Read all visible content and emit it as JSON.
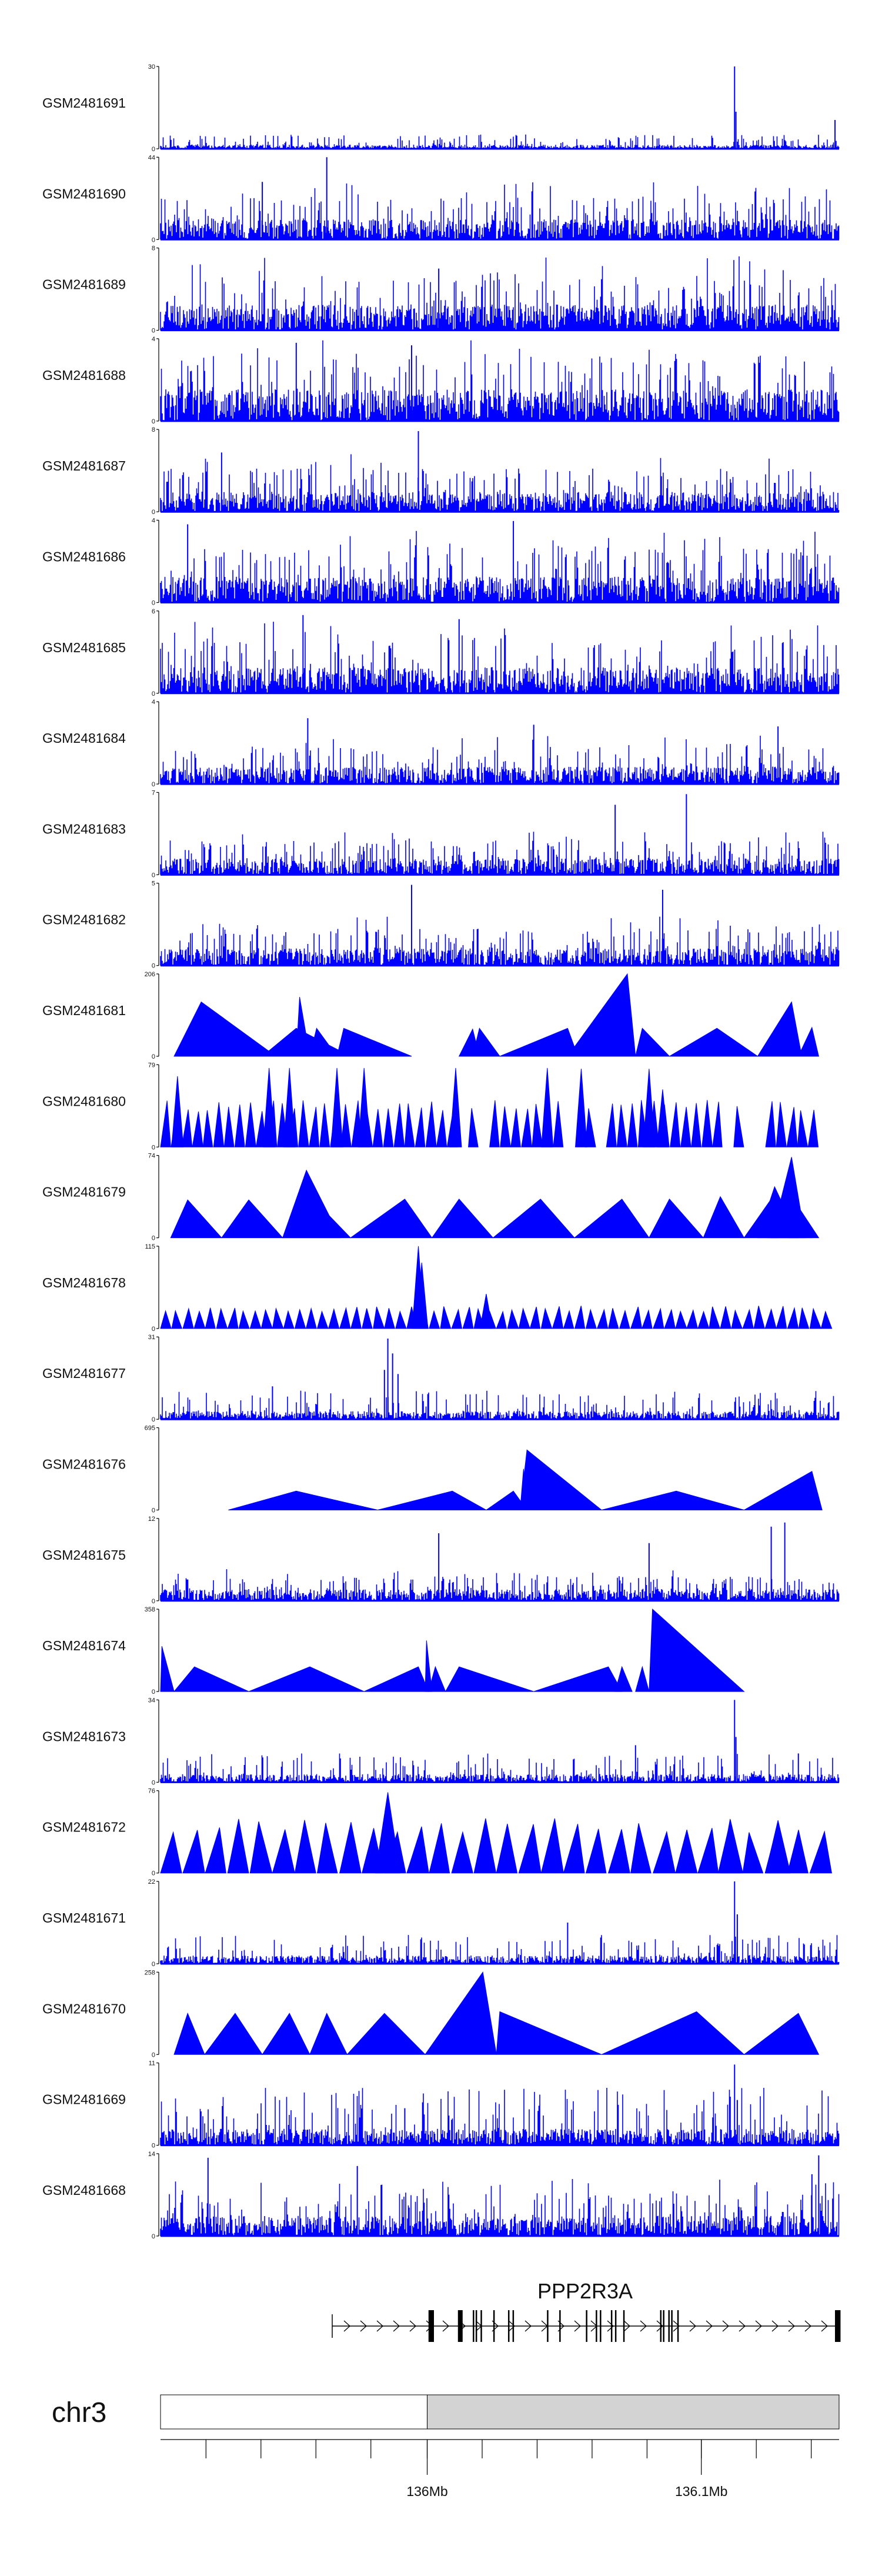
{
  "chart_data": {
    "type": "area",
    "colors": {
      "signal": "#0000ff",
      "axis": "#000000",
      "ideogram_fill": "#d3d3d3",
      "gene": "#000000"
    },
    "tracks": [
      {
        "label": "GSM2481691",
        "ymax": "30",
        "ymin": "0",
        "style": "noise",
        "base": 0.05,
        "spikes": [
          [
            0.846,
            1.0
          ],
          [
            0.848,
            0.45
          ],
          [
            0.994,
            0.35
          ]
        ],
        "seed": 1
      },
      {
        "label": "GSM2481690",
        "ymax": "44",
        "ymin": "0",
        "style": "dense",
        "base": 0.35,
        "spikes": [
          [
            0.245,
            1.0
          ],
          [
            0.15,
            0.7
          ]
        ],
        "seed": 2
      },
      {
        "label": "GSM2481689",
        "ymax": "8",
        "ymin": "0",
        "style": "dense",
        "base": 0.45,
        "spikes": [
          [
            0.41,
            0.75
          ],
          [
            0.65,
            0.62
          ]
        ],
        "seed": 3
      },
      {
        "label": "GSM2481688",
        "ymax": "4",
        "ymin": "0",
        "style": "dense",
        "base": 0.55,
        "spikes": [
          [
            0.2,
            0.95
          ],
          [
            0.37,
            0.92
          ]
        ],
        "seed": 4
      },
      {
        "label": "GSM2481687",
        "ymax": "8",
        "ymin": "0",
        "style": "dense",
        "base": 0.35,
        "spikes": [
          [
            0.38,
            0.98
          ],
          [
            0.09,
            0.72
          ]
        ],
        "seed": 5
      },
      {
        "label": "GSM2481686",
        "ymax": "4",
        "ymin": "0",
        "style": "dense",
        "base": 0.45,
        "spikes": [
          [
            0.52,
            0.99
          ],
          [
            0.04,
            0.95
          ]
        ],
        "seed": 6
      },
      {
        "label": "GSM2481685",
        "ymax": "6",
        "ymin": "0",
        "style": "dense",
        "base": 0.45,
        "spikes": [
          [
            0.21,
            0.95
          ],
          [
            0.44,
            0.9
          ]
        ],
        "seed": 7
      },
      {
        "label": "GSM2481684",
        "ymax": "4",
        "ymin": "0",
        "style": "dense",
        "base": 0.3,
        "spikes": [
          [
            0.217,
            0.8
          ],
          [
            0.55,
            0.72
          ],
          [
            0.91,
            0.7
          ]
        ],
        "seed": 8
      },
      {
        "label": "GSM2481683",
        "ymax": "7",
        "ymin": "0",
        "style": "dense",
        "base": 0.28,
        "spikes": [
          [
            0.775,
            0.98
          ],
          [
            0.67,
            0.85
          ]
        ],
        "seed": 9
      },
      {
        "label": "GSM2481682",
        "ymax": "5",
        "ymin": "0",
        "style": "dense",
        "base": 0.3,
        "spikes": [
          [
            0.37,
            0.98
          ],
          [
            0.74,
            0.92
          ]
        ],
        "seed": 10
      },
      {
        "label": "GSM2481681",
        "ymax": "206",
        "ymin": "0",
        "style": "peaks",
        "peaks": [
          [
            0.02,
            0.06,
            0.17,
            0.66
          ],
          [
            0.06,
            0.07,
            0.15,
            0.33
          ],
          [
            0.15,
            0.2,
            0.28,
            0.34
          ],
          [
            0.2,
            0.205,
            0.22,
            0.72
          ],
          [
            0.22,
            0.23,
            0.26,
            0.34
          ],
          [
            0.26,
            0.27,
            0.37,
            0.34
          ],
          [
            0.44,
            0.46,
            0.47,
            0.33
          ],
          [
            0.46,
            0.47,
            0.5,
            0.34
          ],
          [
            0.5,
            0.6,
            0.615,
            0.34
          ],
          [
            0.88,
            0.93,
            0.945,
            0.66
          ],
          [
            0.615,
            0.655,
            0.7,
            0.34
          ],
          [
            0.7,
            0.71,
            0.75,
            0.34
          ],
          [
            0.75,
            0.82,
            0.88,
            0.34
          ],
          [
            0.9,
            0.92,
            0.94,
            0.34
          ],
          [
            0.6,
            0.688,
            0.7,
            1.0
          ],
          [
            0.94,
            0.96,
            0.97,
            0.35
          ]
        ]
      },
      {
        "label": "GSM2481680",
        "ymax": "79",
        "ymin": "0",
        "style": "sawtooth",
        "base_h": 0.5,
        "teeth": 62,
        "tall": [
          [
            0.16,
            0.96
          ],
          [
            0.19,
            0.96
          ],
          [
            0.26,
            0.96
          ],
          [
            0.3,
            0.96
          ],
          [
            0.435,
            0.96
          ],
          [
            0.57,
            0.96
          ],
          [
            0.62,
            0.95
          ],
          [
            0.72,
            0.95
          ],
          [
            0.025,
            0.86
          ],
          [
            0.74,
            0.7
          ]
        ],
        "gaps": [
          [
            0.55,
            0.65
          ],
          [
            0.43,
            0.48
          ],
          [
            0.66,
            0.68
          ],
          [
            0.79,
            0.9
          ]
        ],
        "range": [
          0.0,
          0.97
        ],
        "seed": 11
      },
      {
        "label": "GSM2481679",
        "ymax": "74",
        "ymin": "0",
        "style": "peaks",
        "peaks": [
          [
            0.015,
            0.04,
            0.09,
            0.46
          ],
          [
            0.09,
            0.13,
            0.18,
            0.46
          ],
          [
            0.18,
            0.215,
            0.265,
            0.82
          ],
          [
            0.18,
            0.225,
            0.28,
            0.47
          ],
          [
            0.28,
            0.36,
            0.4,
            0.47
          ],
          [
            0.4,
            0.44,
            0.49,
            0.47
          ],
          [
            0.49,
            0.56,
            0.61,
            0.47
          ],
          [
            0.61,
            0.68,
            0.72,
            0.47
          ],
          [
            0.72,
            0.75,
            0.8,
            0.47
          ],
          [
            0.8,
            0.825,
            0.86,
            0.5
          ],
          [
            0.86,
            0.9,
            0.96,
            0.47
          ],
          [
            0.9,
            0.93,
            0.95,
            0.98
          ],
          [
            0.88,
            0.905,
            0.94,
            0.62
          ],
          [
            0.895,
            0.905,
            0.91,
            0.6
          ],
          [
            0.925,
            0.93,
            0.97,
            0.5
          ]
        ]
      },
      {
        "label": "GSM2481678",
        "ymax": "115",
        "ymin": "0",
        "style": "sawtooth",
        "base_h": 0.24,
        "teeth": 60,
        "tall": [
          [
            0.38,
            1.0
          ],
          [
            0.385,
            0.8
          ],
          [
            0.48,
            0.42
          ]
        ],
        "gaps": [],
        "range": [
          0.0,
          0.99
        ],
        "seed": 12
      },
      {
        "label": "GSM2481677",
        "ymax": "31",
        "ymin": "0",
        "style": "noise",
        "base": 0.1,
        "spikes": [
          [
            0.335,
            0.98
          ],
          [
            0.342,
            0.8
          ],
          [
            0.33,
            0.6
          ],
          [
            0.35,
            0.55
          ],
          [
            0.165,
            0.4
          ]
        ],
        "seed": 13
      },
      {
        "label": "GSM2481676",
        "ymax": "695",
        "ymin": "0",
        "style": "peaks",
        "peaks": [
          [
            0.1,
            0.2,
            0.32,
            0.23
          ],
          [
            0.32,
            0.43,
            0.48,
            0.23
          ],
          [
            0.48,
            0.52,
            0.54,
            0.23
          ],
          [
            0.53,
            0.54,
            0.65,
            0.73
          ],
          [
            0.53,
            0.535,
            0.54,
            0.5
          ],
          [
            0.65,
            0.76,
            0.86,
            0.23
          ],
          [
            0.86,
            0.96,
            0.975,
            0.47
          ]
        ]
      },
      {
        "label": "GSM2481675",
        "ymax": "12",
        "ymin": "0",
        "style": "dense",
        "base": 0.2,
        "spikes": [
          [
            0.92,
            0.95
          ],
          [
            0.41,
            0.82
          ],
          [
            0.9,
            0.9
          ],
          [
            0.72,
            0.7
          ]
        ],
        "seed": 14
      },
      {
        "label": "GSM2481674",
        "ymax": "358",
        "ymin": "0",
        "style": "peaks",
        "peaks": [
          [
            0.0,
            0.002,
            0.02,
            0.55
          ],
          [
            0.02,
            0.05,
            0.13,
            0.3
          ],
          [
            0.13,
            0.22,
            0.3,
            0.3
          ],
          [
            0.3,
            0.38,
            0.395,
            0.3
          ],
          [
            0.39,
            0.392,
            0.4,
            0.62
          ],
          [
            0.395,
            0.405,
            0.42,
            0.3
          ],
          [
            0.42,
            0.44,
            0.55,
            0.3
          ],
          [
            0.55,
            0.66,
            0.68,
            0.3
          ],
          [
            0.67,
            0.68,
            0.695,
            0.3
          ],
          [
            0.7,
            0.71,
            0.72,
            0.3
          ],
          [
            0.72,
            0.725,
            0.86,
            1.0
          ]
        ]
      },
      {
        "label": "GSM2481673",
        "ymax": "34",
        "ymin": "0",
        "style": "noise",
        "base": 0.1,
        "spikes": [
          [
            0.846,
            1.0
          ],
          [
            0.848,
            0.55
          ],
          [
            0.7,
            0.45
          ],
          [
            0.94,
            0.35
          ]
        ],
        "seed": 15
      },
      {
        "label": "GSM2481672",
        "ymax": "76",
        "ymin": "0",
        "style": "sawtooth",
        "base_h": 0.58,
        "teeth": 30,
        "tall": [
          [
            0.335,
            0.98
          ],
          [
            0.84,
            0.64
          ],
          [
            0.91,
            0.64
          ]
        ],
        "gaps": [],
        "range": [
          0.0,
          0.99
        ],
        "seed": 16
      },
      {
        "label": "GSM2481671",
        "ymax": "22",
        "ymin": "0",
        "style": "noise",
        "base": 0.1,
        "spikes": [
          [
            0.846,
            1.0
          ],
          [
            0.85,
            0.6
          ],
          [
            0.6,
            0.5
          ]
        ],
        "seed": 17
      },
      {
        "label": "GSM2481670",
        "ymax": "258",
        "ymin": "0",
        "style": "peaks",
        "peaks": [
          [
            0.02,
            0.04,
            0.065,
            0.5
          ],
          [
            0.065,
            0.11,
            0.15,
            0.5
          ],
          [
            0.15,
            0.19,
            0.22,
            0.5
          ],
          [
            0.22,
            0.245,
            0.275,
            0.5
          ],
          [
            0.275,
            0.33,
            0.39,
            0.5
          ],
          [
            0.39,
            0.475,
            0.495,
            1.0
          ],
          [
            0.495,
            0.5,
            0.65,
            0.52
          ],
          [
            0.65,
            0.79,
            0.86,
            0.52
          ],
          [
            0.86,
            0.94,
            0.97,
            0.5
          ]
        ]
      },
      {
        "label": "GSM2481669",
        "ymax": "11",
        "ymin": "0",
        "style": "noise",
        "base": 0.2,
        "spikes": [
          [
            0.846,
            0.98
          ],
          [
            0.85,
            0.55
          ],
          [
            0.36,
            0.45
          ]
        ],
        "seed": 18
      },
      {
        "label": "GSM2481668",
        "ymax": "14",
        "ymin": "0",
        "style": "dense",
        "base": 0.35,
        "spikes": [
          [
            0.97,
            0.98
          ],
          [
            0.96,
            0.75
          ],
          [
            0.07,
            0.95
          ],
          [
            0.29,
            0.85
          ]
        ],
        "seed": 19
      }
    ],
    "gene": {
      "name": "PPP2R3A",
      "span": [
        0.255,
        1.0
      ],
      "strand": "+",
      "exons": [
        [
          0.0,
          0.0068,
          "thick"
        ],
        [
          0.0,
          0.0,
          "thin"
        ],
        [
          0.07,
          0.0063,
          "thick"
        ],
        [
          0.108,
          0.0,
          "thin"
        ],
        [
          0.115,
          0.0,
          "thin"
        ],
        [
          0.127,
          0.0,
          "thin"
        ],
        [
          0.158,
          0.0,
          "thin"
        ],
        [
          0.194,
          0.0,
          "thin"
        ],
        [
          0.205,
          0.0,
          "thin"
        ],
        [
          0.289,
          0.0,
          "thin"
        ],
        [
          0.319,
          0.0,
          "thin"
        ],
        [
          0.384,
          0.0,
          "thin"
        ],
        [
          0.408,
          0.0,
          "thin"
        ],
        [
          0.418,
          0.0,
          "thin"
        ],
        [
          0.445,
          0.0,
          "thin"
        ],
        [
          0.455,
          0.0,
          "thin"
        ],
        [
          0.475,
          0.0,
          "thin"
        ],
        [
          0.565,
          0.0,
          "thin"
        ],
        [
          0.572,
          0.0,
          "thin"
        ],
        [
          0.585,
          0.0,
          "thin"
        ],
        [
          0.592,
          0.0,
          "thin"
        ],
        [
          0.607,
          0.0,
          "thin"
        ],
        [
          0.99,
          0.0135,
          "thick"
        ]
      ]
    },
    "ideogram": {
      "chrom": "chr3",
      "boundary": 0.393
    },
    "axis": {
      "minor_ticks": [
        0.067,
        0.148,
        0.229,
        0.31,
        0.393,
        0.474,
        0.555,
        0.636,
        0.717,
        0.797,
        0.878,
        0.959
      ],
      "labeled_ticks": [
        {
          "label": "136Mb",
          "x": 0.393
        },
        {
          "label": "136.1Mb",
          "x": 0.797
        }
      ]
    }
  }
}
